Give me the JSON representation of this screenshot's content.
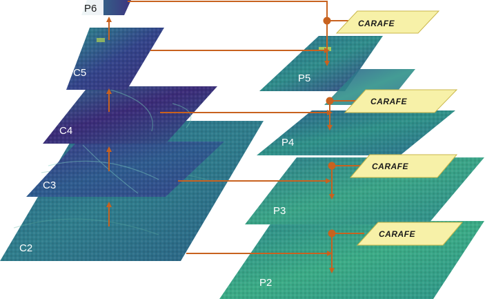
{
  "bottom_up": {
    "c2": "C2",
    "c3": "C3",
    "c4": "C4",
    "c5": "C5",
    "p6": "P6"
  },
  "top_down": {
    "p5": "P5",
    "p4": "P4",
    "p3": "P3",
    "p2": "P2"
  },
  "carafe_label": "CARAFE",
  "colors": {
    "arrow": "#c8621f",
    "carafe_fill": "#f7f1a8",
    "carafe_stroke": "#c9b64a",
    "map_dark": "#3b1f6e",
    "map_mid": "#2a6f8f",
    "map_bright": "#3aa889"
  }
}
